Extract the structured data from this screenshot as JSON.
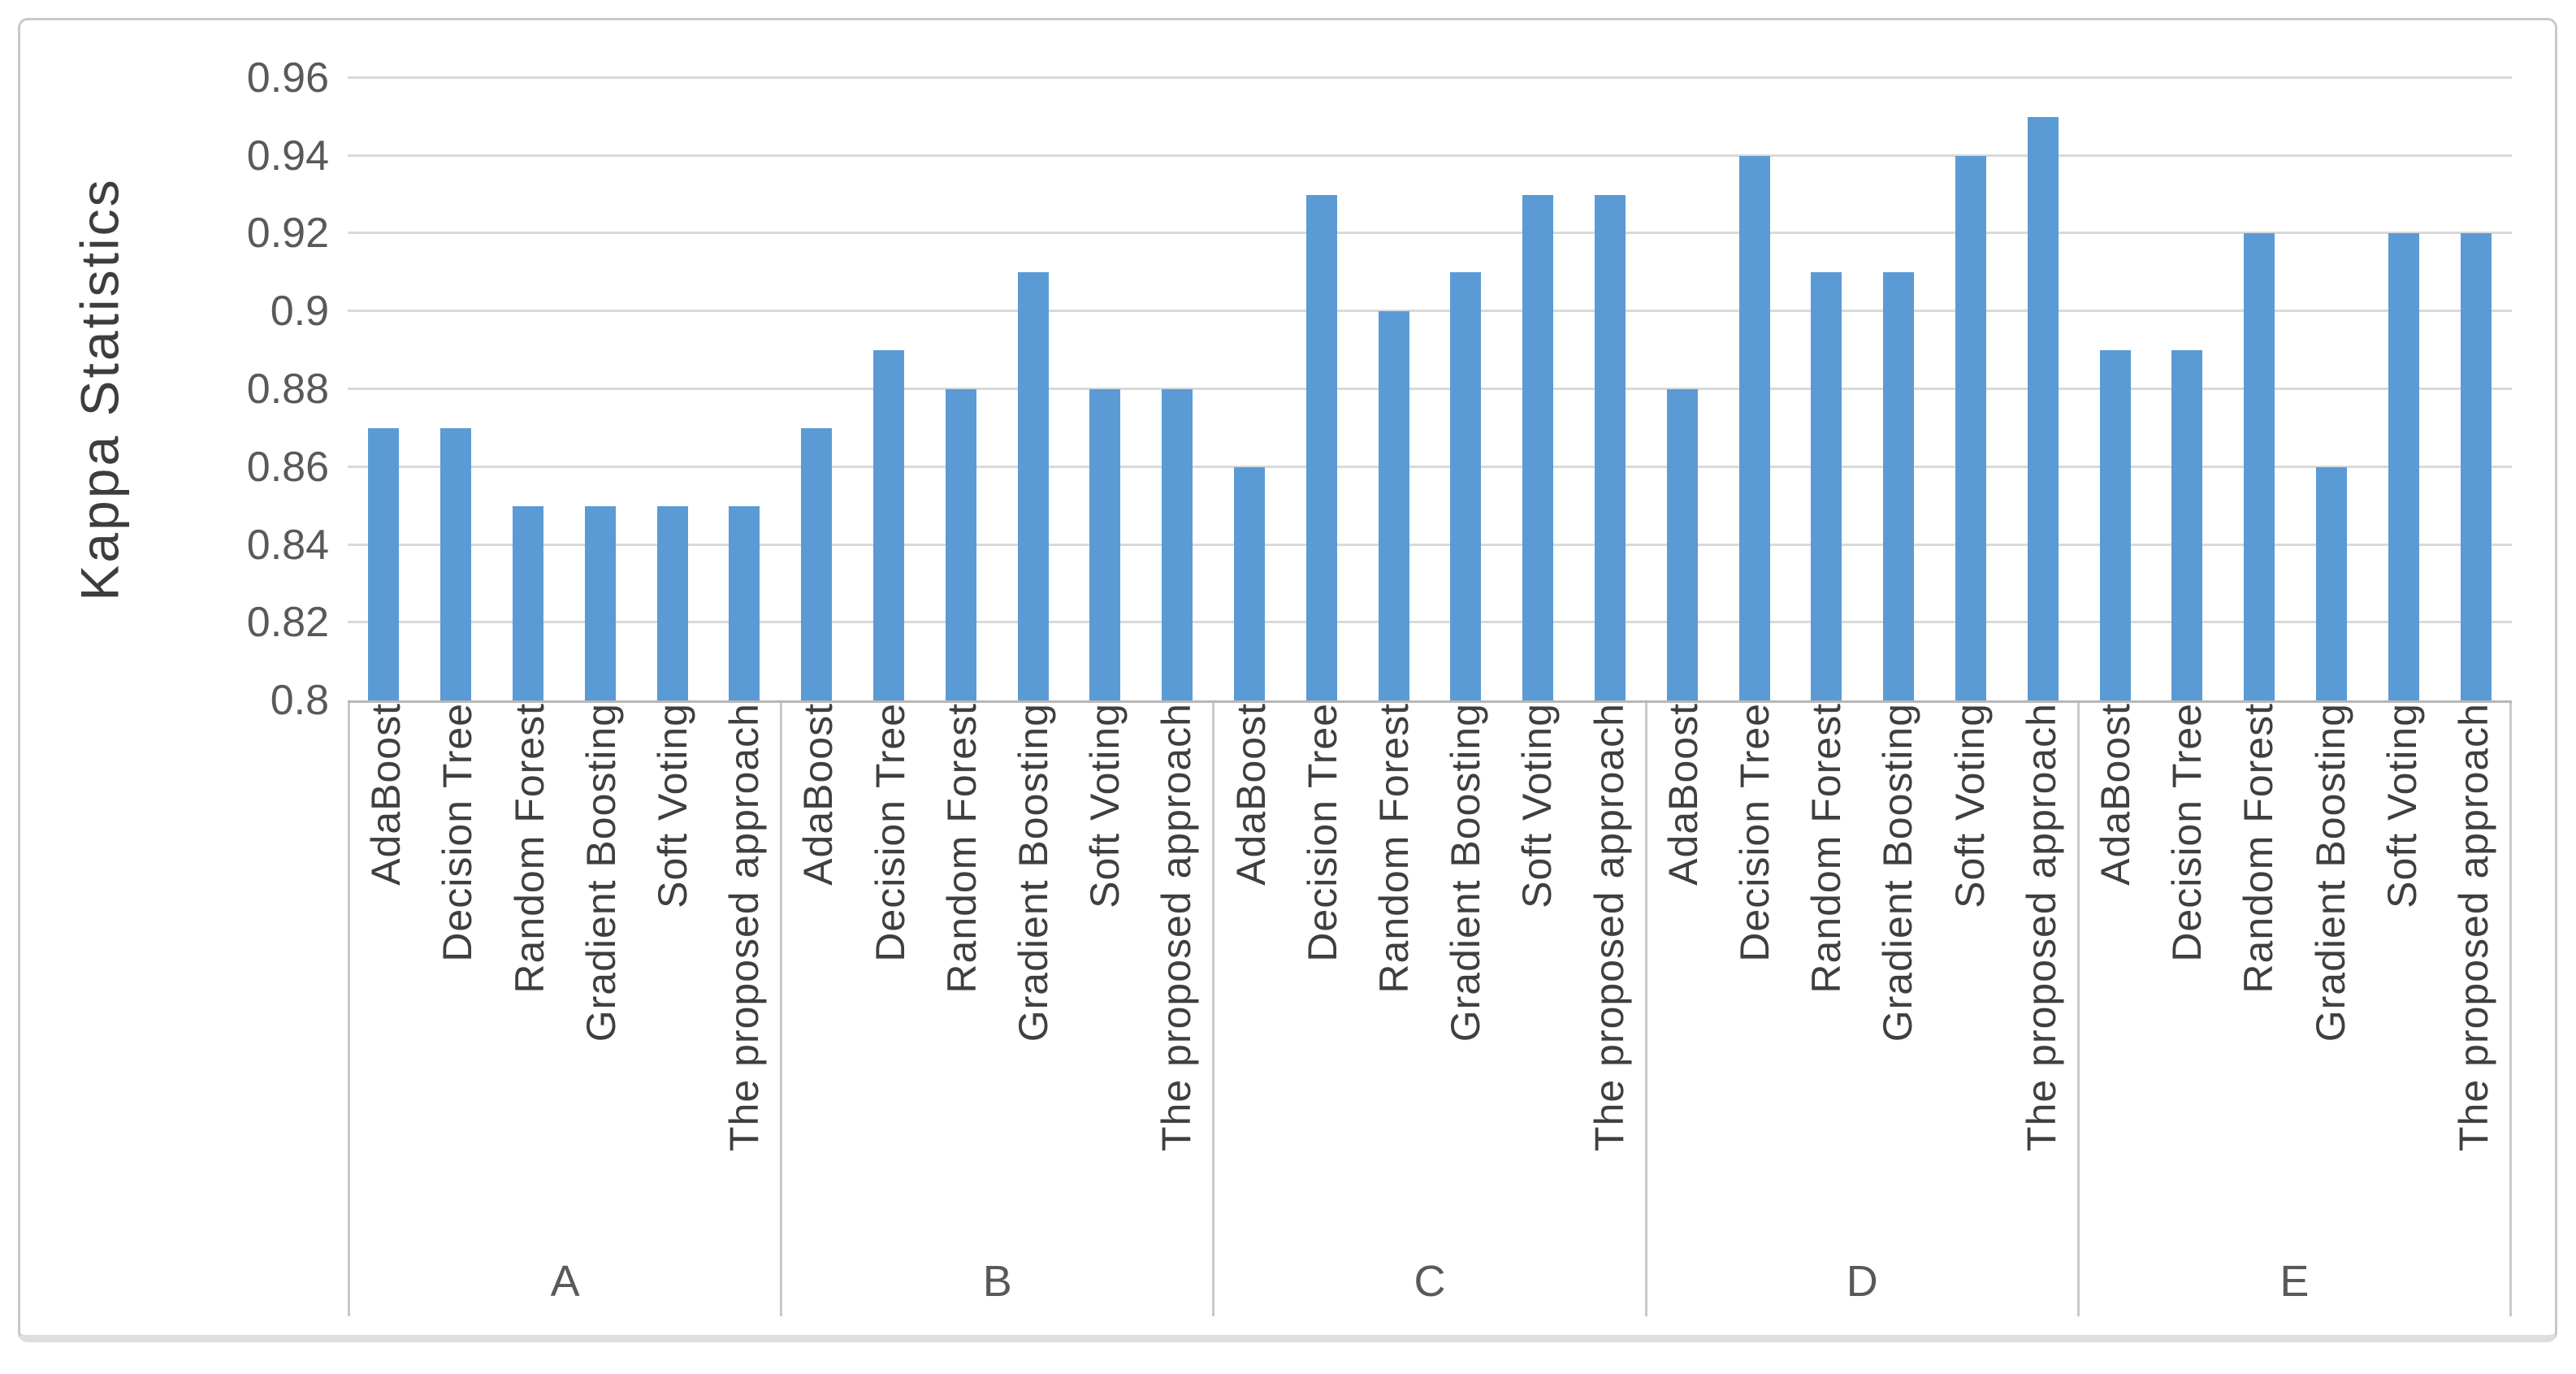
{
  "figure": {
    "description": "Bar chart comparing Kappa Statistics of six classifiers across five datasets"
  },
  "chart_data": {
    "type": "bar",
    "title": "",
    "xlabel": "",
    "ylabel": "Kappa Statistics",
    "ylim": [
      0.8,
      0.96
    ],
    "grid": true,
    "legend_position": "none",
    "bar_color": "#5b9bd5",
    "gridline_color": "#d9d9d9",
    "axis_line_color": "#b7b7b7",
    "y_ticks": [
      {
        "label": "0.8",
        "value": 0.8
      },
      {
        "label": "0.82",
        "value": 0.82
      },
      {
        "label": "0.84",
        "value": 0.84
      },
      {
        "label": "0.86",
        "value": 0.86
      },
      {
        "label": "0.88",
        "value": 0.88
      },
      {
        "label": "0.9",
        "value": 0.9
      },
      {
        "label": "0.92",
        "value": 0.92
      },
      {
        "label": "0.94",
        "value": 0.94
      },
      {
        "label": "0.96",
        "value": 0.96
      }
    ],
    "categories": [
      "AdaBoost",
      "Decision Tree",
      "Random Forest",
      "Gradient Boosting",
      "Soft Voting",
      "The proposed approach"
    ],
    "groups": [
      {
        "label": "A",
        "values": [
          0.87,
          0.87,
          0.85,
          0.85,
          0.85,
          0.85
        ]
      },
      {
        "label": "B",
        "values": [
          0.87,
          0.89,
          0.88,
          0.91,
          0.88,
          0.88
        ]
      },
      {
        "label": "C",
        "values": [
          0.86,
          0.93,
          0.9,
          0.91,
          0.93,
          0.93
        ]
      },
      {
        "label": "D",
        "values": [
          0.88,
          0.94,
          0.91,
          0.91,
          0.94,
          0.95
        ]
      },
      {
        "label": "E",
        "values": [
          0.89,
          0.89,
          0.92,
          0.86,
          0.92,
          0.92
        ]
      }
    ]
  }
}
